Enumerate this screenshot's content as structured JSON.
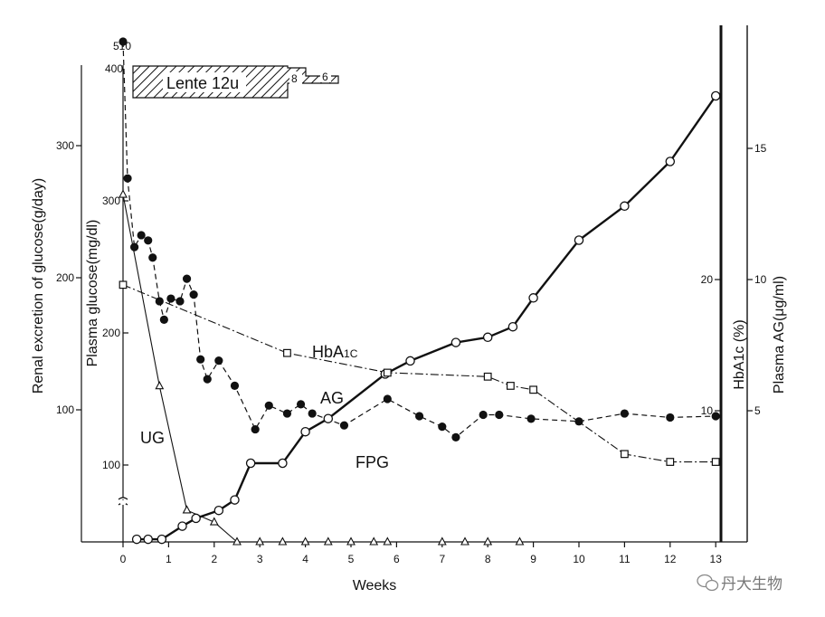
{
  "chart_data": {
    "type": "line",
    "xlabel": "Weeks",
    "x_ticks": [
      "0",
      "1",
      "2",
      "3",
      "4",
      "5",
      "6",
      "7",
      "8",
      "9",
      "10",
      "11",
      "12",
      "13"
    ],
    "xlim": [
      -1,
      13.6
    ],
    "axes": {
      "renal": {
        "label": "Renal excretion of glucose(g/day)",
        "ticks": [
          "100",
          "200",
          "300"
        ],
        "top_label": "400"
      },
      "fpg": {
        "label": "Plasma glucose(mg/dl)",
        "ticks": [
          "100",
          "200",
          "300"
        ],
        "top_label": "510"
      },
      "hba1c": {
        "label": "HbA1c (%)",
        "ticks": [
          "10",
          "20"
        ]
      },
      "ag": {
        "label": "Plasma AG(μg/ml)",
        "ticks": [
          "5",
          "10",
          "15"
        ]
      }
    },
    "treatment": {
      "label": "Lente 12u",
      "steps": [
        "8",
        "6"
      ]
    },
    "series": [
      {
        "name": "UG",
        "axis": "renal",
        "marker": "triangle-open",
        "line": "solid-thin",
        "points": [
          [
            0,
            263
          ],
          [
            0.8,
            118
          ],
          [
            1.4,
            24
          ],
          [
            2.0,
            15
          ],
          [
            2.5,
            0
          ],
          [
            3.0,
            0
          ],
          [
            3.5,
            0
          ],
          [
            4.0,
            0
          ],
          [
            4.5,
            0
          ],
          [
            5.0,
            0
          ],
          [
            5.5,
            0
          ],
          [
            5.8,
            0
          ],
          [
            7.0,
            0
          ],
          [
            7.5,
            0
          ],
          [
            8.0,
            0
          ],
          [
            8.7,
            0
          ]
        ]
      },
      {
        "name": "FPG",
        "axis": "fpg",
        "marker": "circle-filled",
        "line": "dashed",
        "points": [
          [
            0,
            510
          ],
          [
            0.1,
            317
          ],
          [
            0.25,
            265
          ],
          [
            0.4,
            274
          ],
          [
            0.55,
            270
          ],
          [
            0.65,
            257
          ],
          [
            0.8,
            224
          ],
          [
            0.9,
            210
          ],
          [
            1.05,
            226
          ],
          [
            1.25,
            224
          ],
          [
            1.4,
            241
          ],
          [
            1.55,
            229
          ],
          [
            1.7,
            180
          ],
          [
            1.85,
            165
          ],
          [
            2.1,
            179
          ],
          [
            2.45,
            160
          ],
          [
            2.9,
            127
          ],
          [
            3.2,
            145
          ],
          [
            3.6,
            139
          ],
          [
            3.9,
            146
          ],
          [
            4.15,
            139
          ],
          [
            4.85,
            130
          ],
          [
            5.8,
            150
          ],
          [
            6.5,
            137
          ],
          [
            7.0,
            129
          ],
          [
            7.3,
            121
          ],
          [
            7.9,
            138
          ],
          [
            8.25,
            138
          ],
          [
            8.95,
            135
          ],
          [
            10.0,
            133
          ],
          [
            11.0,
            139
          ],
          [
            12.0,
            136
          ],
          [
            13.0,
            137
          ]
        ]
      },
      {
        "name": "AG",
        "axis": "ag",
        "marker": "circle-open",
        "line": "solid-thick",
        "points": [
          [
            0.3,
            0.1
          ],
          [
            0.55,
            0.1
          ],
          [
            0.85,
            0.1
          ],
          [
            1.3,
            0.6
          ],
          [
            1.6,
            0.9
          ],
          [
            2.1,
            1.2
          ],
          [
            2.45,
            1.6
          ],
          [
            2.8,
            3.0
          ],
          [
            3.5,
            3.0
          ],
          [
            4.0,
            4.2
          ],
          [
            4.5,
            4.7
          ],
          [
            5.75,
            6.4
          ],
          [
            6.3,
            6.9
          ],
          [
            7.3,
            7.6
          ],
          [
            8.0,
            7.8
          ],
          [
            8.55,
            8.2
          ],
          [
            9.0,
            9.3
          ],
          [
            10.0,
            11.5
          ],
          [
            11.0,
            12.8
          ],
          [
            12.0,
            14.5
          ],
          [
            13.0,
            17.0
          ]
        ]
      },
      {
        "name": "HbA1c",
        "axis": "hba1c",
        "marker": "square-open",
        "line": "dash-dot",
        "points": [
          [
            0,
            19.6
          ],
          [
            3.6,
            14.4
          ],
          [
            5.8,
            12.9
          ],
          [
            8.0,
            12.6
          ],
          [
            8.5,
            11.9
          ],
          [
            9.0,
            11.6
          ],
          [
            11.0,
            6.7
          ],
          [
            12.0,
            6.1
          ],
          [
            13.0,
            6.1
          ]
        ]
      }
    ]
  },
  "watermark": {
    "text": "丹大生物",
    "icon": "wechat-icon"
  }
}
